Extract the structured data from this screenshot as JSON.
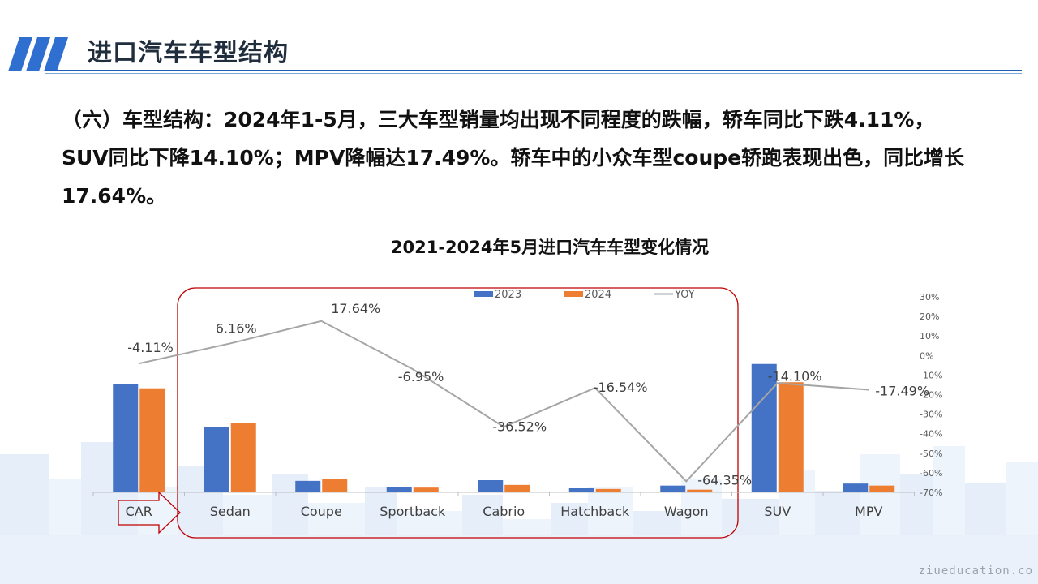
{
  "header": {
    "title": "进口汽车车型结构"
  },
  "summary": {
    "line1": "（六）车型结构：2024年1-5月，三大车型销量均出现不同程度的跌幅，轿车同比下跌4.11%，",
    "line2": "SUV同比下降14.10%；MPV降幅达17.49%。轿车中的小众车型coupe轿跑表现出色，同比增长",
    "line3": "17.64%。"
  },
  "chart_data": {
    "type": "bar",
    "title": "2021-2024年5月进口汽车车型变化情况",
    "categories": [
      "CAR",
      "Sedan",
      "Coupe",
      "Sportback",
      "Cabrio",
      "Hatchback",
      "Wagon",
      "SUV",
      "MPV"
    ],
    "series": [
      {
        "name": "2023",
        "type": "bar",
        "axis": "left",
        "values": [
          160,
          97,
          17,
          8,
          18,
          6,
          10,
          190,
          13
        ]
      },
      {
        "name": "2024",
        "type": "bar",
        "axis": "left",
        "values": [
          154,
          103,
          20,
          7,
          11,
          5,
          4,
          163,
          10
        ]
      },
      {
        "name": "YOY",
        "type": "line",
        "axis": "right",
        "values": [
          -4.11,
          6.16,
          17.64,
          -6.95,
          -36.52,
          -16.54,
          -64.35,
          -14.1,
          -17.49
        ],
        "labels": [
          "-4.11%",
          "6.16%",
          "17.64%",
          "-6.95%",
          "-36.52%",
          "-16.54%",
          "-64.35%",
          "-14.10%",
          "-17.49%"
        ]
      }
    ],
    "right_axis": {
      "range": [
        -70,
        30
      ],
      "ticks": [
        30,
        20,
        10,
        0,
        -10,
        -20,
        -30,
        -40,
        -50,
        -60,
        -70
      ],
      "tick_labels": [
        "30%",
        "20%",
        "10%",
        "0%",
        "-10%",
        "-20%",
        "-30%",
        "-40%",
        "-50%",
        "-60%",
        "-70%"
      ]
    },
    "left_axis_visible": false,
    "legend": {
      "position": "top",
      "entries": [
        "2023",
        "2024",
        "YOY"
      ]
    },
    "grid": false,
    "colors": {
      "2023": "#4472c4",
      "2024": "#ed7d31",
      "YOY": "#a5a5a5"
    },
    "annotations": {
      "highlight_box": {
        "covers": [
          "Sedan",
          "Coupe",
          "Sportback",
          "Cabrio",
          "Hatchback",
          "Wagon"
        ],
        "color": "#c00000"
      },
      "arrow": {
        "points_from": "CAR",
        "color": "#c00000"
      }
    }
  },
  "footer": {
    "watermark": "ziueducation.co"
  }
}
